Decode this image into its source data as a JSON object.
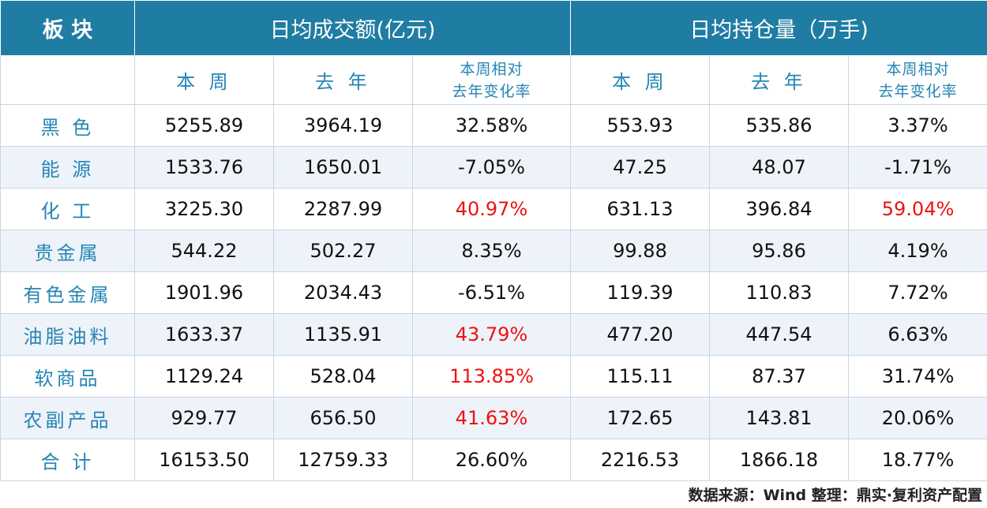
{
  "header": {
    "sector": "板 块",
    "group_turnover": "日均成交额(亿元)",
    "group_oi": "日均持仓量（万手)"
  },
  "subheader": {
    "this_week": "本 周",
    "last_year": "去 年",
    "change_line1": "本周相对",
    "change_line2": "去年变化率"
  },
  "rows": [
    {
      "sector": "黑 色",
      "t_week": "5255.89",
      "t_year": "3964.19",
      "t_chg": "32.58%",
      "o_week": "553.93",
      "o_year": "535.86",
      "o_chg": "3.37%"
    },
    {
      "sector": "能 源",
      "t_week": "1533.76",
      "t_year": "1650.01",
      "t_chg": "-7.05%",
      "o_week": "47.25",
      "o_year": "48.07",
      "o_chg": "-1.71%"
    },
    {
      "sector": "化 工",
      "t_week": "3225.30",
      "t_year": "2287.99",
      "t_chg": "40.97%",
      "o_week": "631.13",
      "o_year": "396.84",
      "o_chg": "59.04%"
    },
    {
      "sector": "贵金属",
      "t_week": "544.22",
      "t_year": "502.27",
      "t_chg": "8.35%",
      "o_week": "99.88",
      "o_year": "95.86",
      "o_chg": "4.19%"
    },
    {
      "sector": "有色金属",
      "t_week": "1901.96",
      "t_year": "2034.43",
      "t_chg": "-6.51%",
      "o_week": "119.39",
      "o_year": "110.83",
      "o_chg": "7.72%"
    },
    {
      "sector": "油脂油料",
      "t_week": "1633.37",
      "t_year": "1135.91",
      "t_chg": "43.79%",
      "o_week": "477.20",
      "o_year": "447.54",
      "o_chg": "6.63%"
    },
    {
      "sector": "软商品",
      "t_week": "1129.24",
      "t_year": "528.04",
      "t_chg": "113.85%",
      "o_week": "115.11",
      "o_year": "87.37",
      "o_chg": "31.74%"
    },
    {
      "sector": "农副产品",
      "t_week": "929.77",
      "t_year": "656.50",
      "t_chg": "41.63%",
      "o_week": "172.65",
      "o_year": "143.81",
      "o_chg": "20.06%"
    },
    {
      "sector": "合 计",
      "t_week": "16153.50",
      "t_year": "12759.33",
      "t_chg": "26.60%",
      "o_week": "2216.53",
      "o_year": "1866.18",
      "o_chg": "18.77%"
    }
  ],
  "highlight_color": "#ee1111",
  "source": "数据来源：Wind   整理：鼎实·复利资产配置"
}
